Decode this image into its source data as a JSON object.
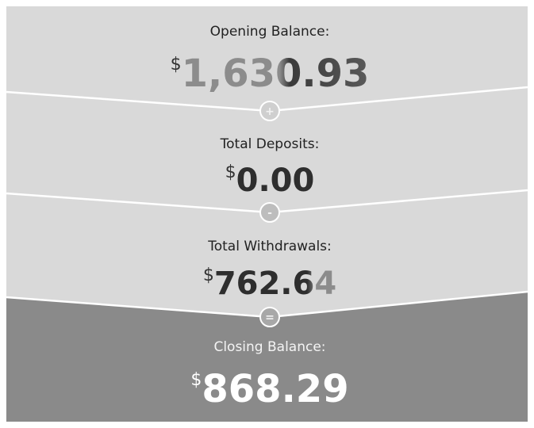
{
  "sections": [
    {
      "label": "Opening Balance:",
      "currency": "$",
      "amount": "1,630.93"
    },
    {
      "operator": "+",
      "label": "Total Deposits:",
      "currency": "$",
      "amount": "0.00"
    },
    {
      "operator": "-",
      "label": "Total Withdrawals:",
      "currency": "$",
      "amount": "762.64"
    },
    {
      "operator": "=",
      "label": "Closing Balance:",
      "currency": "$",
      "amount": "868.29"
    }
  ]
}
